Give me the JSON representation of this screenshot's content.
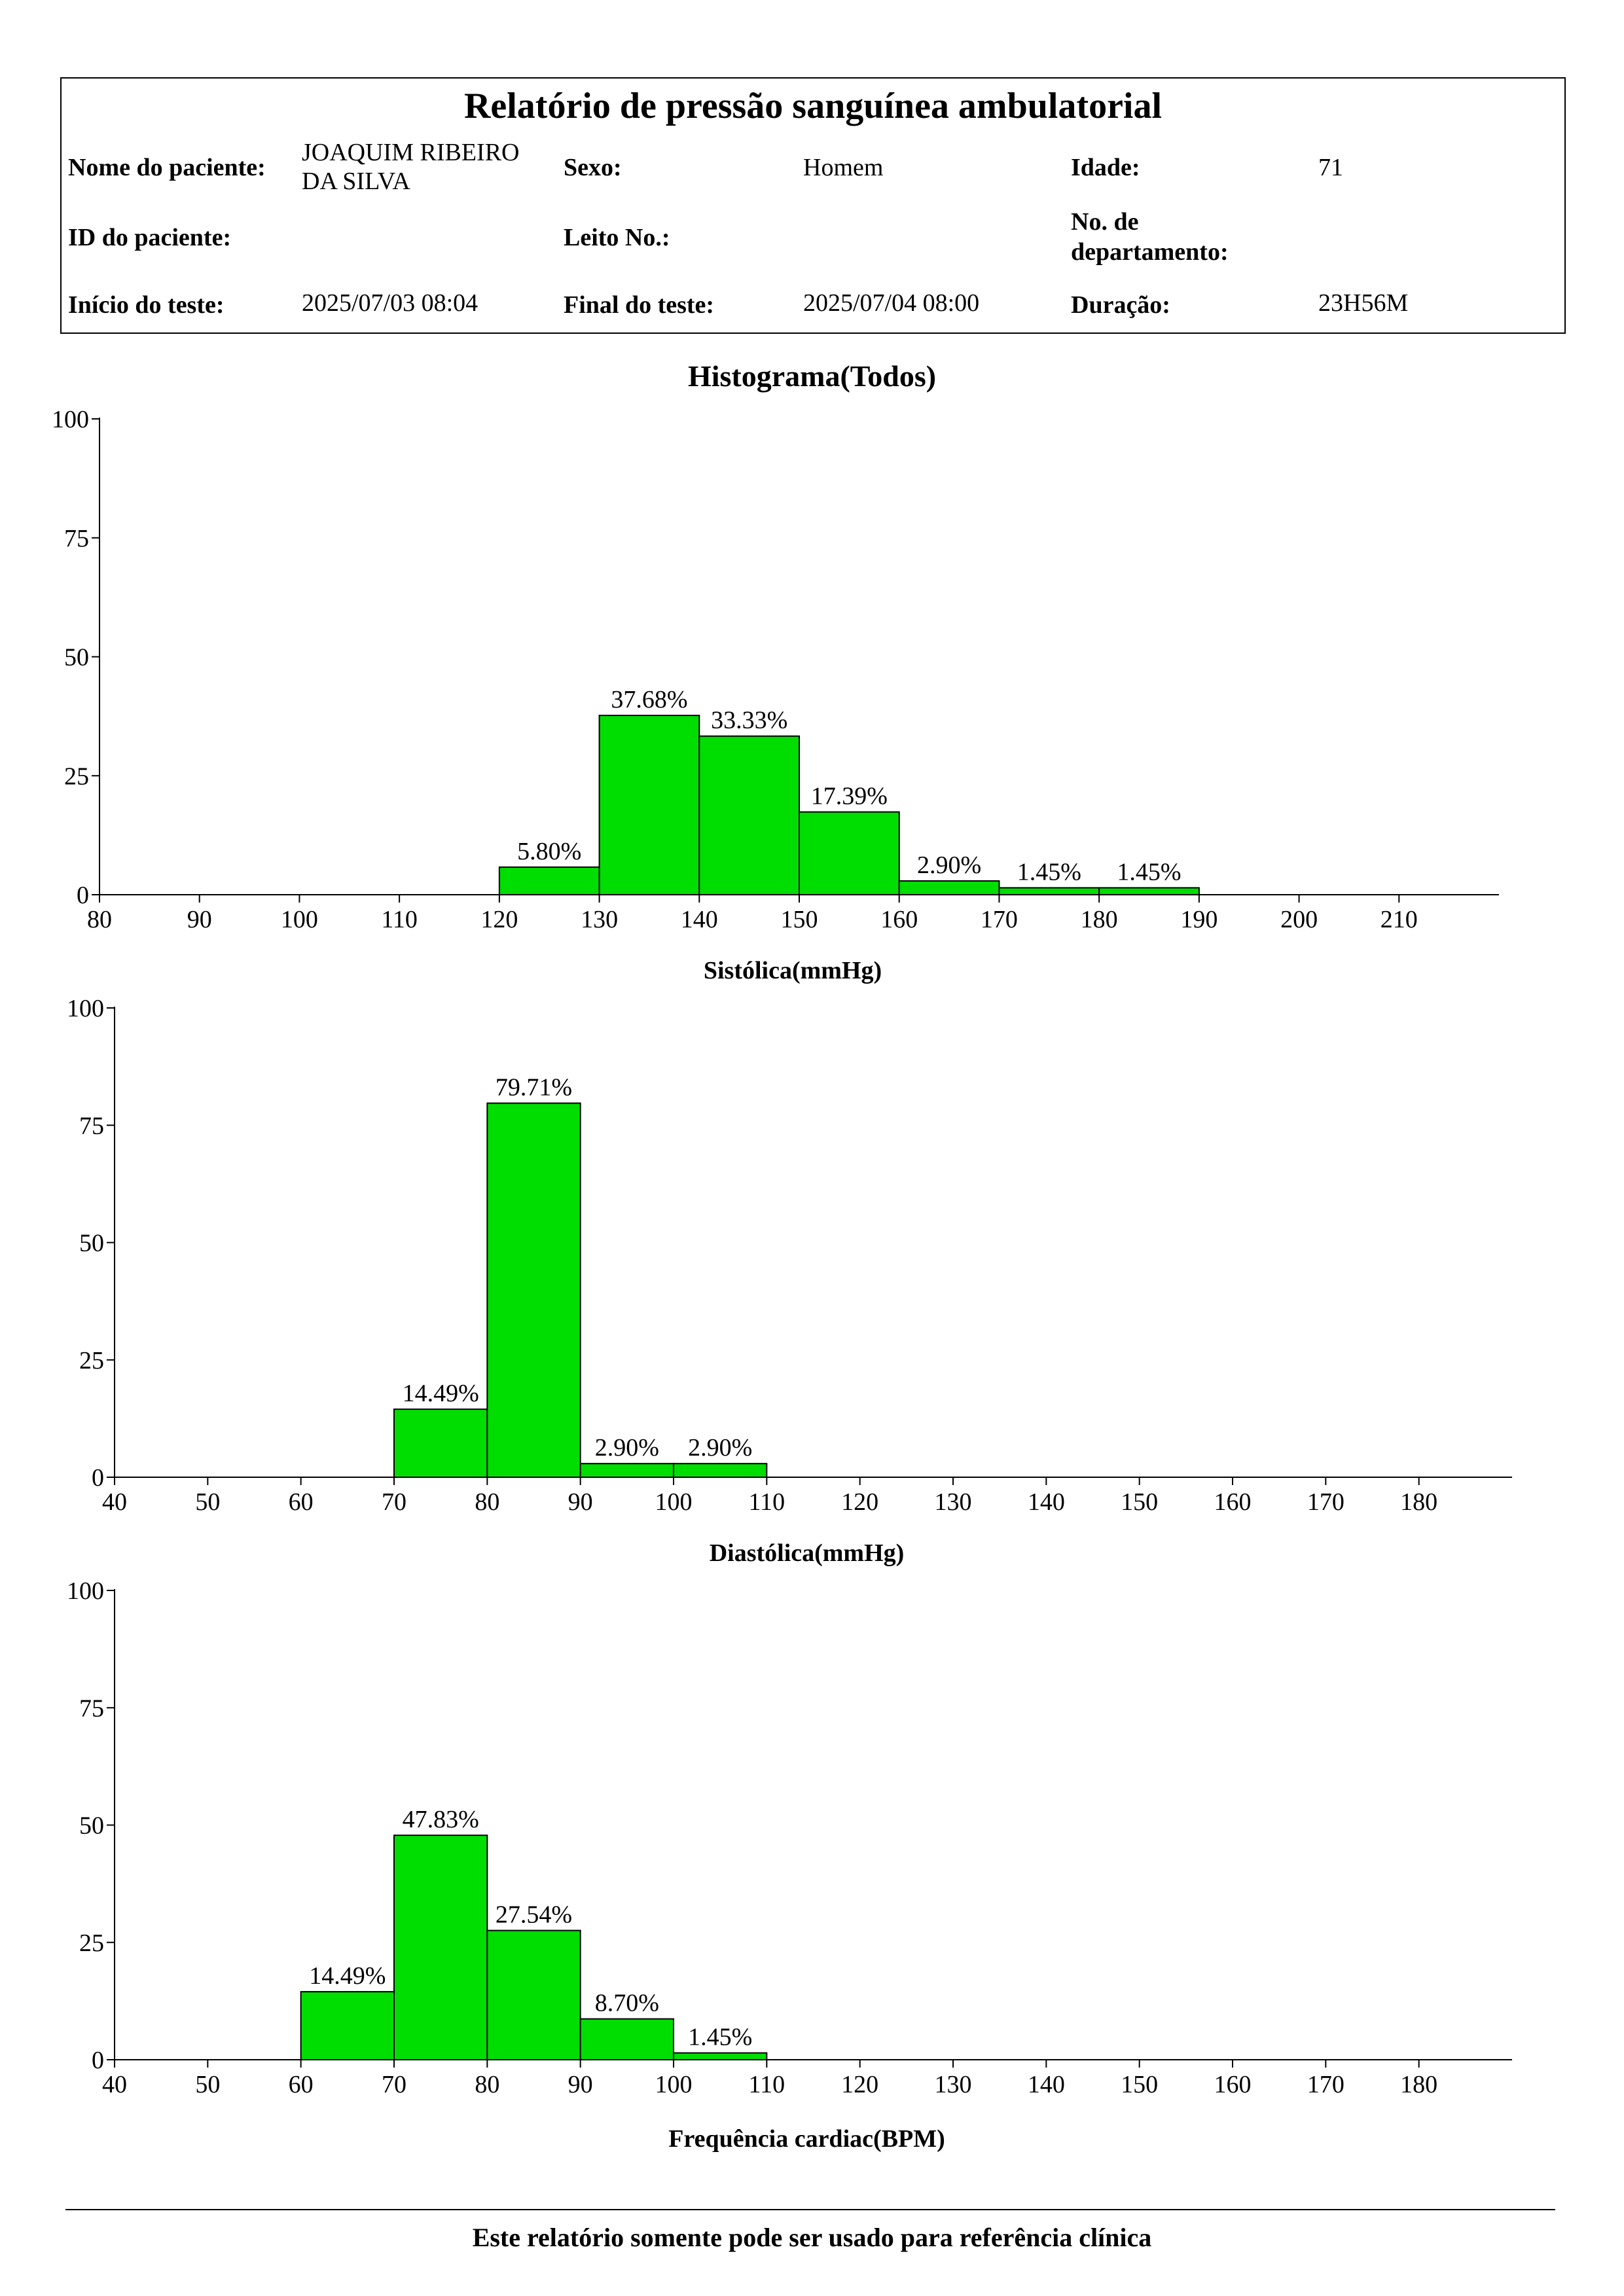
{
  "report": {
    "title": "Relatório de pressão sanguínea ambulatorial",
    "patient_name_label": "Nome do paciente:",
    "patient_name_line1": "JOAQUIM RIBEIRO",
    "patient_name_line2": "DA SILVA",
    "sex_label": "Sexo:",
    "sex_value": "Homem",
    "age_label": "Idade:",
    "age_value": "71",
    "patient_id_label": "ID do paciente:",
    "patient_id_value": "",
    "bed_label": "Leito No.:",
    "bed_value": "",
    "department_label_line1": "No. de",
    "department_label_line2": "departamento:",
    "department_value": "",
    "test_start_label": "Início do teste:",
    "test_start_value": "2025/07/03 08:04",
    "test_end_label": "Final do teste:",
    "test_end_value": "2025/07/04 08:00",
    "duration_label": "Duração:",
    "duration_value": "23H56M"
  },
  "histogram_title": "Histograma(Todos)",
  "footer": {
    "note": "Este relatório somente pode ser usado para referência clínica"
  },
  "colors": {
    "bar_fill": "#00dd00",
    "bar_stroke": "#000000"
  },
  "chart_data": [
    {
      "type": "bar",
      "id": "systolic",
      "xlabel": "Sistólica(mmHg)",
      "ylabel": "",
      "xlim": [
        80,
        220
      ],
      "xticks": [
        80,
        90,
        100,
        110,
        120,
        130,
        140,
        150,
        160,
        170,
        180,
        190,
        200,
        210
      ],
      "ylim": [
        0,
        100
      ],
      "yticks": [
        0,
        25,
        50,
        75,
        100
      ],
      "bin_width": 10,
      "bins": [
        {
          "start": 120,
          "value": 5.8,
          "label": "5.80%"
        },
        {
          "start": 130,
          "value": 37.68,
          "label": "37.68%"
        },
        {
          "start": 140,
          "value": 33.33,
          "label": "33.33%"
        },
        {
          "start": 150,
          "value": 17.39,
          "label": "17.39%"
        },
        {
          "start": 160,
          "value": 2.9,
          "label": "2.90%"
        },
        {
          "start": 170,
          "value": 1.45,
          "label": "1.45%"
        },
        {
          "start": 180,
          "value": 1.45,
          "label": "1.45%"
        }
      ]
    },
    {
      "type": "bar",
      "id": "diastolic",
      "xlabel": "Diastólica(mmHg)",
      "ylabel": "",
      "xlim": [
        40,
        190
      ],
      "xticks": [
        40,
        50,
        60,
        70,
        80,
        90,
        100,
        110,
        120,
        130,
        140,
        150,
        160,
        170,
        180
      ],
      "ylim": [
        0,
        100
      ],
      "yticks": [
        0,
        25,
        50,
        75,
        100
      ],
      "bin_width": 10,
      "bins": [
        {
          "start": 70,
          "value": 14.49,
          "label": "14.49%"
        },
        {
          "start": 80,
          "value": 79.71,
          "label": "79.71%"
        },
        {
          "start": 90,
          "value": 2.9,
          "label": "2.90%"
        },
        {
          "start": 100,
          "value": 2.9,
          "label": "2.90%"
        }
      ]
    },
    {
      "type": "bar",
      "id": "heart-rate",
      "xlabel": "Frequência cardiac(BPM)",
      "ylabel": "",
      "xlim": [
        40,
        190
      ],
      "xticks": [
        40,
        50,
        60,
        70,
        80,
        90,
        100,
        110,
        120,
        130,
        140,
        150,
        160,
        170,
        180
      ],
      "ylim": [
        0,
        100
      ],
      "yticks": [
        0,
        25,
        50,
        75,
        100
      ],
      "bin_width": 10,
      "bins": [
        {
          "start": 60,
          "value": 14.49,
          "label": "14.49%"
        },
        {
          "start": 70,
          "value": 47.83,
          "label": "47.83%"
        },
        {
          "start": 80,
          "value": 27.54,
          "label": "27.54%"
        },
        {
          "start": 90,
          "value": 8.7,
          "label": "8.70%"
        },
        {
          "start": 100,
          "value": 1.45,
          "label": "1.45%"
        }
      ]
    }
  ]
}
